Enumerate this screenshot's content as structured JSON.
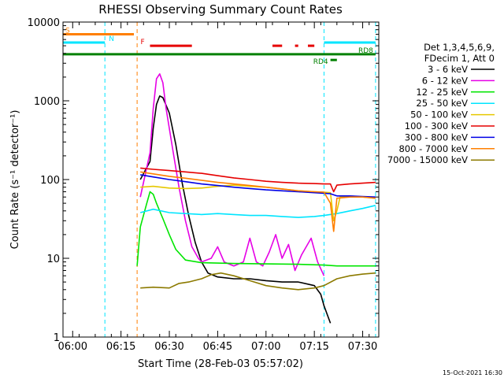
{
  "chart_data": {
    "type": "line",
    "title": "RHESSI Observing Summary Count Rates",
    "xlabel": "Start Time (28-Feb-03 05:57:02)",
    "ylabel": "Count Rate (s⁻¹ detector⁻¹)",
    "x_range": [
      "05:57",
      "07:35"
    ],
    "x_ticks": [
      "06:00",
      "06:15",
      "06:30",
      "06:45",
      "07:00",
      "07:15",
      "07:30"
    ],
    "y_scale": "log",
    "y_range": [
      1,
      10000
    ],
    "y_ticks": [
      "1",
      "10",
      "100",
      "1000",
      "10000"
    ],
    "legend_header": [
      "Det 1,3,4,5,6,9,",
      "FDecim 1, Att 0"
    ],
    "legend_position": "right",
    "footer_timestamp": "15-Oct-2021 16:30",
    "annotations": {
      "flags": [
        {
          "label": "S",
          "color": "#ff7f00",
          "y": 7000,
          "segments": [
            [
              "05:57",
              "06:19"
            ]
          ]
        },
        {
          "label": "N",
          "color": "#00e5ff",
          "y": 5500,
          "segments": [
            [
              "05:57",
              "06:10"
            ],
            [
              "07:18",
              "07:34"
            ]
          ]
        },
        {
          "label": "F",
          "color": "#e60000",
          "y": 5000,
          "segments": [
            [
              "06:24",
              "06:37"
            ],
            [
              "07:02",
              "07:05"
            ],
            [
              "07:09",
              "07:10"
            ],
            [
              "07:13",
              "07:15"
            ]
          ]
        },
        {
          "label": "RD8",
          "color": "#008000",
          "y": 3900,
          "segments": [
            [
              "05:57",
              "07:34"
            ]
          ]
        },
        {
          "label": "RD4",
          "color": "#008000",
          "y": 3300,
          "segments": [
            [
              "07:20",
              "07:22"
            ]
          ]
        }
      ],
      "vlines": [
        {
          "x": "06:10",
          "color": "#00e5ff"
        },
        {
          "x": "06:20",
          "color": "#ff7f00"
        },
        {
          "x": "07:18",
          "color": "#00e5ff"
        },
        {
          "x": "07:34",
          "color": "#00e5ff"
        }
      ]
    },
    "series": [
      {
        "name": "3 - 6 keV",
        "color": "#000000",
        "points": [
          [
            "06:21",
            100
          ],
          [
            "06:24",
            170
          ],
          [
            "06:25",
            450
          ],
          [
            "06:26",
            900
          ],
          [
            "06:27",
            1150
          ],
          [
            "06:28",
            1100
          ],
          [
            "06:30",
            700
          ],
          [
            "06:32",
            280
          ],
          [
            "06:34",
            90
          ],
          [
            "06:36",
            35
          ],
          [
            "06:38",
            16
          ],
          [
            "06:40",
            9
          ],
          [
            "06:42",
            6.5
          ],
          [
            "06:45",
            5.8
          ],
          [
            "06:50",
            5.5
          ],
          [
            "06:55",
            5.5
          ],
          [
            "07:00",
            5.2
          ],
          [
            "07:05",
            5
          ],
          [
            "07:10",
            5
          ],
          [
            "07:15",
            4.5
          ],
          [
            "07:17",
            3.5
          ],
          [
            "07:18",
            2.5
          ],
          [
            "07:20",
            1.5
          ]
        ]
      },
      {
        "name": "6 - 12 keV",
        "color": "#e600e6",
        "points": [
          [
            "06:21",
            60
          ],
          [
            "06:24",
            220
          ],
          [
            "06:25",
            800
          ],
          [
            "06:26",
            1900
          ],
          [
            "06:27",
            2200
          ],
          [
            "06:28",
            1700
          ],
          [
            "06:29",
            800
          ],
          [
            "06:31",
            250
          ],
          [
            "06:33",
            80
          ],
          [
            "06:35",
            30
          ],
          [
            "06:37",
            14
          ],
          [
            "06:39",
            10
          ],
          [
            "06:40",
            9
          ],
          [
            "06:43",
            10
          ],
          [
            "06:45",
            14
          ],
          [
            "06:47",
            9
          ],
          [
            "06:50",
            8
          ],
          [
            "06:53",
            9
          ],
          [
            "06:55",
            18
          ],
          [
            "06:57",
            9
          ],
          [
            "06:59",
            8
          ],
          [
            "07:01",
            12
          ],
          [
            "07:03",
            20
          ],
          [
            "07:05",
            10
          ],
          [
            "07:07",
            15
          ],
          [
            "07:09",
            7
          ],
          [
            "07:11",
            11
          ],
          [
            "07:14",
            18
          ],
          [
            "07:16",
            9
          ],
          [
            "07:18",
            6
          ]
        ]
      },
      {
        "name": "12 - 25 keV",
        "color": "#00e600",
        "points": [
          [
            "06:20",
            8
          ],
          [
            "06:21",
            25
          ],
          [
            "06:23",
            50
          ],
          [
            "06:24",
            70
          ],
          [
            "06:25",
            65
          ],
          [
            "06:26",
            50
          ],
          [
            "06:28",
            32
          ],
          [
            "06:30",
            20
          ],
          [
            "06:32",
            13
          ],
          [
            "06:35",
            9.5
          ],
          [
            "06:40",
            8.8
          ],
          [
            "06:50",
            8.6
          ],
          [
            "07:00",
            8.5
          ],
          [
            "07:10",
            8.4
          ],
          [
            "07:18",
            8.2
          ],
          [
            "07:22",
            8
          ],
          [
            "07:26",
            8
          ],
          [
            "07:30",
            8
          ],
          [
            "07:34",
            8
          ]
        ]
      },
      {
        "name": "25 - 50 keV",
        "color": "#00e5ff",
        "points": [
          [
            "06:21",
            38
          ],
          [
            "06:25",
            42
          ],
          [
            "06:30",
            38
          ],
          [
            "06:35",
            37
          ],
          [
            "06:40",
            36
          ],
          [
            "06:45",
            37
          ],
          [
            "06:50",
            36
          ],
          [
            "06:55",
            35
          ],
          [
            "07:00",
            35
          ],
          [
            "07:05",
            34
          ],
          [
            "07:10",
            33
          ],
          [
            "07:15",
            34
          ],
          [
            "07:18",
            35
          ],
          [
            "07:22",
            37
          ],
          [
            "07:26",
            40
          ],
          [
            "07:30",
            43
          ],
          [
            "07:34",
            47
          ]
        ]
      },
      {
        "name": "50 - 100 keV",
        "color": "#e6c800",
        "points": [
          [
            "06:21",
            80
          ],
          [
            "06:25",
            82
          ],
          [
            "06:30",
            78
          ],
          [
            "06:35",
            77
          ],
          [
            "06:40",
            78
          ],
          [
            "06:45",
            82
          ],
          [
            "06:50",
            85
          ],
          [
            "06:55",
            82
          ],
          [
            "07:00",
            80
          ],
          [
            "07:05",
            76
          ],
          [
            "07:10",
            72
          ],
          [
            "07:15",
            70
          ],
          [
            "07:18",
            69
          ],
          [
            "07:20",
            68
          ],
          [
            "07:21",
            30
          ],
          [
            "07:22",
            40
          ],
          [
            "07:23",
            60
          ],
          [
            "07:26",
            62
          ],
          [
            "07:30",
            60
          ],
          [
            "07:34",
            58
          ]
        ]
      },
      {
        "name": "100 - 300 keV",
        "color": "#e60000",
        "points": [
          [
            "06:21",
            140
          ],
          [
            "06:25",
            135
          ],
          [
            "06:30",
            130
          ],
          [
            "06:35",
            125
          ],
          [
            "06:40",
            120
          ],
          [
            "06:45",
            112
          ],
          [
            "06:50",
            105
          ],
          [
            "06:55",
            100
          ],
          [
            "07:00",
            95
          ],
          [
            "07:05",
            92
          ],
          [
            "07:10",
            90
          ],
          [
            "07:15",
            89
          ],
          [
            "07:18",
            88
          ],
          [
            "07:20",
            88
          ],
          [
            "07:21",
            70
          ],
          [
            "07:22",
            85
          ],
          [
            "07:26",
            88
          ],
          [
            "07:30",
            90
          ],
          [
            "07:34",
            92
          ]
        ]
      },
      {
        "name": "300 - 800 keV",
        "color": "#0000e6",
        "points": [
          [
            "06:21",
            115
          ],
          [
            "06:25",
            108
          ],
          [
            "06:30",
            100
          ],
          [
            "06:35",
            94
          ],
          [
            "06:40",
            88
          ],
          [
            "06:45",
            84
          ],
          [
            "06:50",
            80
          ],
          [
            "06:55",
            77
          ],
          [
            "07:00",
            74
          ],
          [
            "07:05",
            72
          ],
          [
            "07:10",
            70
          ],
          [
            "07:15",
            68
          ],
          [
            "07:18",
            67
          ],
          [
            "07:20",
            66
          ],
          [
            "07:22",
            62
          ],
          [
            "07:26",
            62
          ],
          [
            "07:30",
            61
          ],
          [
            "07:34",
            60
          ]
        ]
      },
      {
        "name": "800 - 7000 keV",
        "color": "#ff7f00",
        "points": [
          [
            "06:21",
            125
          ],
          [
            "06:25",
            118
          ],
          [
            "06:30",
            110
          ],
          [
            "06:35",
            104
          ],
          [
            "06:40",
            98
          ],
          [
            "06:45",
            92
          ],
          [
            "06:50",
            88
          ],
          [
            "06:55",
            84
          ],
          [
            "07:00",
            80
          ],
          [
            "07:05",
            76
          ],
          [
            "07:10",
            72
          ],
          [
            "07:15",
            70
          ],
          [
            "07:18",
            69
          ],
          [
            "07:20",
            50
          ],
          [
            "07:21",
            22
          ],
          [
            "07:22",
            58
          ],
          [
            "07:26",
            60
          ],
          [
            "07:30",
            60
          ],
          [
            "07:34",
            58
          ]
        ]
      },
      {
        "name": "7000 - 15000 keV",
        "color": "#8c7a00",
        "points": [
          [
            "06:21",
            4.2
          ],
          [
            "06:25",
            4.3
          ],
          [
            "06:30",
            4.2
          ],
          [
            "06:33",
            4.8
          ],
          [
            "06:36",
            5
          ],
          [
            "06:40",
            5.5
          ],
          [
            "06:43",
            6.2
          ],
          [
            "06:46",
            6.5
          ],
          [
            "06:50",
            6
          ],
          [
            "06:55",
            5.2
          ],
          [
            "07:00",
            4.5
          ],
          [
            "07:05",
            4.2
          ],
          [
            "07:10",
            4
          ],
          [
            "07:15",
            4.2
          ],
          [
            "07:18",
            4.5
          ],
          [
            "07:22",
            5.5
          ],
          [
            "07:26",
            6
          ],
          [
            "07:30",
            6.3
          ],
          [
            "07:34",
            6.5
          ]
        ]
      }
    ]
  }
}
